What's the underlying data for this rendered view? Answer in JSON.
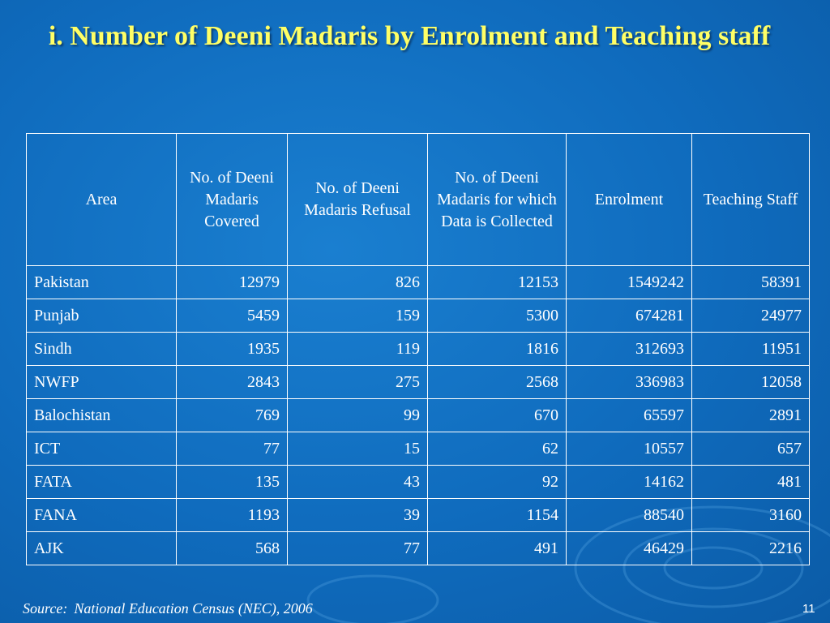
{
  "title": "i. Number of Deeni Madaris by Enrolment and Teaching staff",
  "table": {
    "columns": [
      "Area",
      "No. of Deeni Madaris Covered",
      "No. of Deeni Madaris Refusal",
      "No. of Deeni Madaris for which Data is Collected",
      "Enrolment",
      "Teaching Staff"
    ],
    "rows": [
      [
        "Pakistan",
        12979,
        826,
        12153,
        1549242,
        58391
      ],
      [
        "Punjab",
        5459,
        159,
        5300,
        674281,
        24977
      ],
      [
        "Sindh",
        1935,
        119,
        1816,
        312693,
        11951
      ],
      [
        "NWFP",
        2843,
        275,
        2568,
        336983,
        12058
      ],
      [
        "Balochistan",
        769,
        99,
        670,
        65597,
        2891
      ],
      [
        "ICT",
        77,
        15,
        62,
        10557,
        657
      ],
      [
        "FATA",
        135,
        43,
        92,
        14162,
        481
      ],
      [
        "FANA",
        1193,
        39,
        1154,
        88540,
        3160
      ],
      [
        "AJK",
        568,
        77,
        491,
        46429,
        2216
      ]
    ]
  },
  "footer": {
    "source_label": "Source:",
    "source_text": "National Education Census (NEC), 2006",
    "page_number": "11"
  }
}
